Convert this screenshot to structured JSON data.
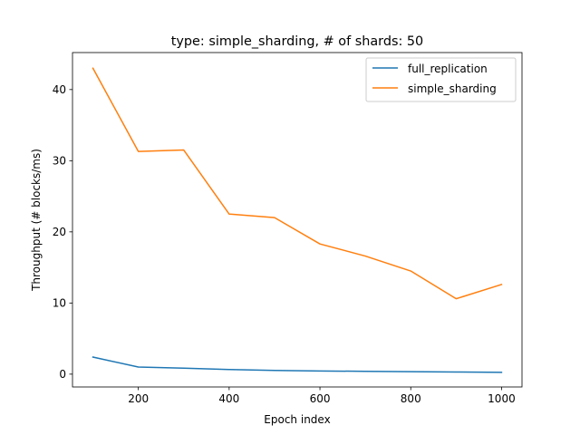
{
  "chart_data": {
    "type": "line",
    "title": "type: simple_sharding, # of shards: 50",
    "xlabel": "Epoch index",
    "ylabel": "Throughput (# blocks/ms)",
    "xlim": [
      55,
      1045
    ],
    "ylim": [
      -1.8,
      45.2
    ],
    "xticks": [
      200,
      400,
      600,
      800,
      1000
    ],
    "yticks": [
      0,
      10,
      20,
      30,
      40
    ],
    "legend_position": "upper-right",
    "grid": false,
    "x": [
      100,
      200,
      300,
      400,
      500,
      600,
      700,
      800,
      900,
      1000
    ],
    "series": [
      {
        "name": "full_replication",
        "color": "#1f77b4",
        "values": [
          2.4,
          1.0,
          0.85,
          0.65,
          0.52,
          0.45,
          0.4,
          0.35,
          0.3,
          0.25
        ]
      },
      {
        "name": "simple_sharding",
        "color": "#ff7f0e",
        "values": [
          43.0,
          31.3,
          31.5,
          22.5,
          22.0,
          18.3,
          16.6,
          14.5,
          10.6,
          12.6
        ]
      }
    ]
  }
}
